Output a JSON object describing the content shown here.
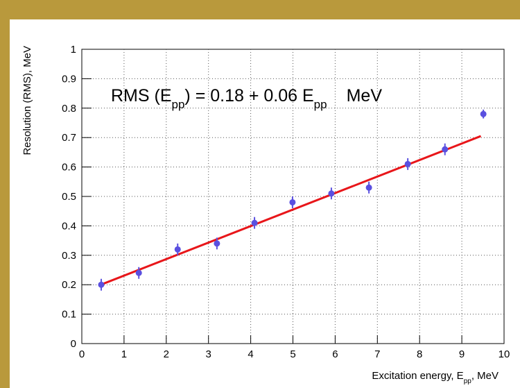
{
  "chart_data": {
    "type": "scatter",
    "x": [
      0.46,
      1.35,
      2.27,
      3.2,
      4.09,
      4.99,
      5.91,
      6.8,
      7.72,
      8.6,
      9.51
    ],
    "values": [
      0.2,
      0.24,
      0.32,
      0.34,
      0.41,
      0.48,
      0.51,
      0.53,
      0.61,
      0.66,
      0.78
    ],
    "errors": [
      0.02,
      0.02,
      0.02,
      0.02,
      0.02,
      0.02,
      0.02,
      0.02,
      0.02,
      0.02,
      0.015
    ],
    "color": "#5a50e0",
    "fit": {
      "x": [
        0.45,
        9.45
      ],
      "values": [
        0.2,
        0.705
      ],
      "color": "#e8161a"
    },
    "annotation": [
      "RMS (E",
      "pp",
      ") = 0.18 + 0.06 E",
      "pp",
      "MeV"
    ],
    "xlabel": [
      "Excitation energy,  E",
      "pp",
      ",  MeV"
    ],
    "ylabel": "Resolution (RMS),  MeV",
    "xlim": [
      0,
      10
    ],
    "ylim": [
      0,
      1
    ],
    "xticks": [
      0,
      1,
      2,
      3,
      4,
      5,
      6,
      7,
      8,
      9,
      10
    ],
    "yticks": [
      0,
      0.1,
      0.2,
      0.3,
      0.4,
      0.5,
      0.6,
      0.7,
      0.8,
      0.9,
      1
    ],
    "grid": true
  }
}
